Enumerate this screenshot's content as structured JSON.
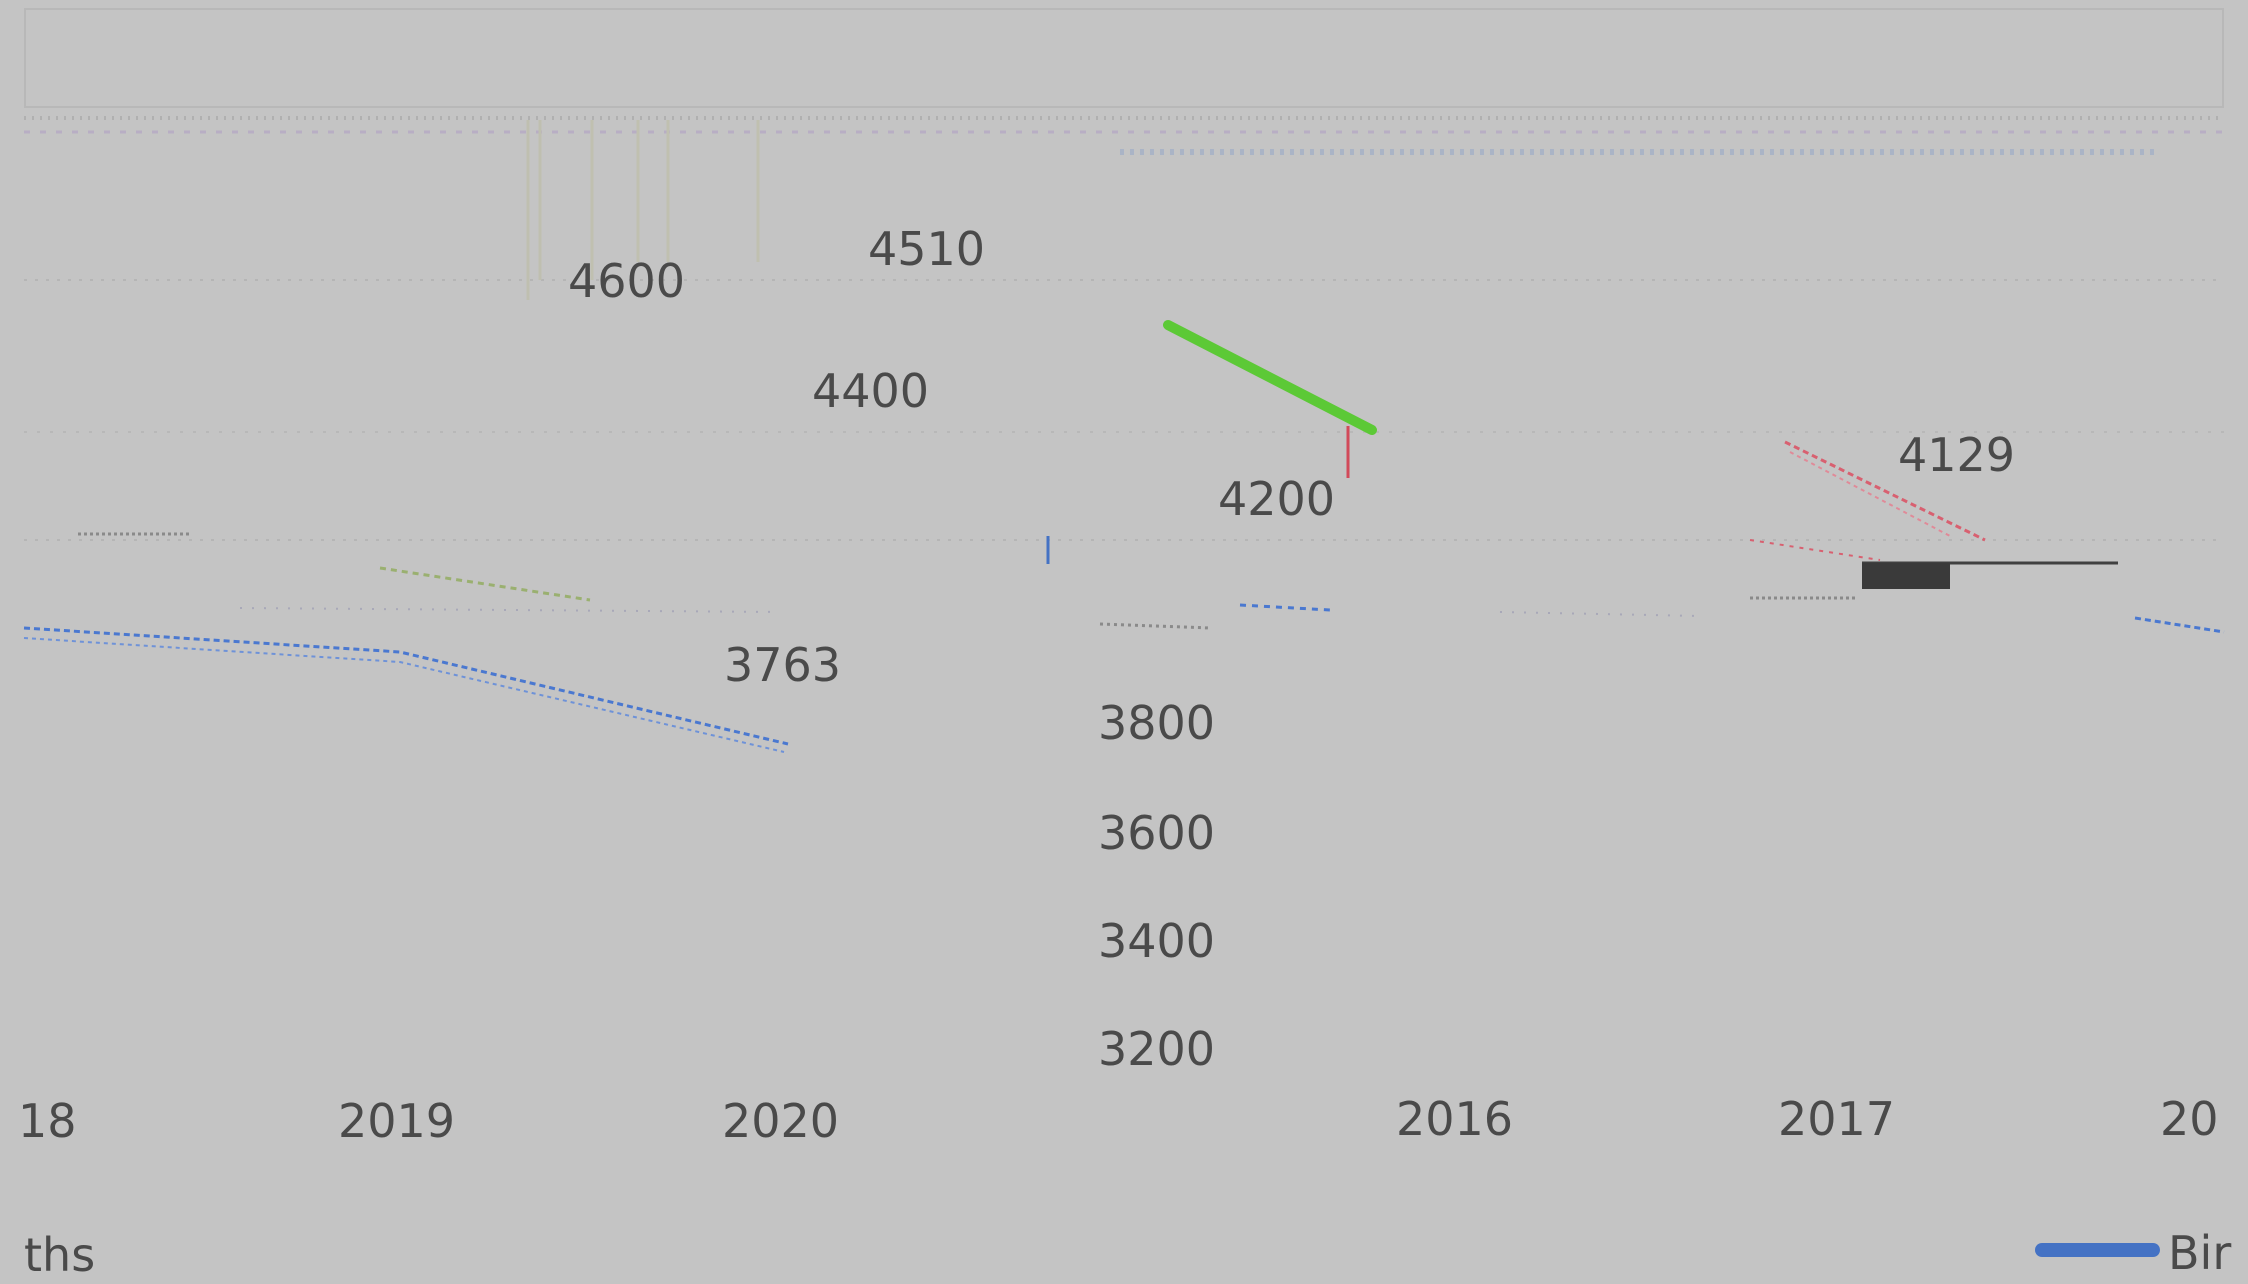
{
  "chart": {
    "value_labels": [
      "4600",
      "4510",
      "4400",
      "4200",
      "4129",
      "3763"
    ],
    "y_ticks": [
      "3800",
      "3600",
      "3400",
      "3200"
    ],
    "x_ticks": [
      "18",
      "2019",
      "2020",
      "2016",
      "2017",
      "20"
    ],
    "bottom_left_label": "ths",
    "legend_label": "Bir"
  },
  "colors": {
    "background": "#c4c4c4",
    "text": "#4a4a4a",
    "series_blue": "#4472c4",
    "series_green": "#5cc936",
    "series_red": "#d24a5a",
    "dark_block": "#3a3a3a"
  }
}
